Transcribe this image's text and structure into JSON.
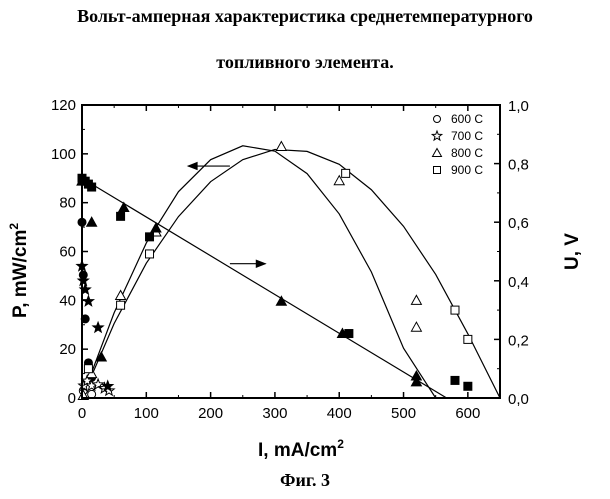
{
  "page": {
    "title_line1": "Вольт-амперная характеристика среднетемпературного",
    "title_line2": "топливного элемента.",
    "caption": "Фиг. 3"
  },
  "chart_data": {
    "type": "scatter",
    "x_axis": {
      "label_main": "I, mA/cm",
      "label_sup": "2",
      "range": [
        0,
        650
      ],
      "ticks": [
        0,
        100,
        200,
        300,
        400,
        500,
        600
      ],
      "tick_labels": [
        "0",
        "100",
        "200",
        "300",
        "400",
        "500",
        "600"
      ]
    },
    "y_left": {
      "label_main": "P, mW/cm",
      "label_sup": "2",
      "range": [
        0,
        120
      ],
      "ticks": [
        0,
        20,
        40,
        60,
        80,
        100,
        120
      ],
      "tick_labels": [
        "0",
        "20",
        "40",
        "60",
        "80",
        "100",
        "120"
      ]
    },
    "y_right": {
      "label": "U, V",
      "range": [
        0,
        1.0
      ],
      "ticks": [
        0,
        0.2,
        0.4,
        0.6,
        0.8,
        1.0
      ],
      "tick_labels": [
        "0,0",
        "0,2",
        "0,4",
        "0,6",
        "0,8",
        "1,0"
      ]
    },
    "legend": {
      "position": "top-right",
      "entries": [
        {
          "label": "600 C",
          "marker": "circle"
        },
        {
          "label": "700 C",
          "marker": "star"
        },
        {
          "label": "800 C",
          "marker": "triangle"
        },
        {
          "label": "900 C",
          "marker": "square"
        }
      ]
    },
    "series": [
      {
        "temperature": "600 C",
        "kind": "power",
        "marker": "circle",
        "filled": false,
        "axis": "left",
        "x": [
          2,
          5,
          8,
          12,
          15
        ],
        "y": [
          3,
          5,
          6,
          4,
          1.5
        ]
      },
      {
        "temperature": "600 C",
        "kind": "voltage",
        "marker": "circle",
        "filled": true,
        "axis": "right",
        "x": [
          0,
          2,
          5,
          10,
          15
        ],
        "y": [
          0.6,
          0.42,
          0.27,
          0.12,
          0.07
        ]
      },
      {
        "temperature": "700 C",
        "kind": "power",
        "marker": "star",
        "filled": false,
        "axis": "left",
        "x": [
          3,
          8,
          15,
          25,
          35,
          42
        ],
        "y": [
          5,
          7,
          5,
          5.5,
          4,
          3
        ]
      },
      {
        "temperature": "700 C",
        "kind": "voltage",
        "marker": "star",
        "filled": true,
        "axis": "right",
        "x": [
          0,
          2,
          5,
          10,
          25,
          40
        ],
        "y": [
          0.45,
          0.4,
          0.37,
          0.33,
          0.24,
          0.04
        ]
      },
      {
        "temperature": "800 C",
        "kind": "power",
        "marker": "triangle",
        "filled": false,
        "axis": "left",
        "x": [
          2,
          15,
          60,
          115,
          310,
          400,
          520,
          520
        ],
        "y": [
          1,
          10,
          42,
          68,
          103,
          89,
          40,
          29
        ]
      },
      {
        "temperature": "800 C",
        "kind": "voltage",
        "marker": "triangle",
        "filled": true,
        "axis": "right",
        "x": [
          0,
          15,
          30,
          65,
          115,
          310,
          405,
          520,
          520
        ],
        "y": [
          0.74,
          0.6,
          0.14,
          0.65,
          0.58,
          0.33,
          0.22,
          0.075,
          0.055
        ]
      },
      {
        "temperature": "900 C",
        "kind": "power",
        "marker": "square",
        "filled": false,
        "axis": "left",
        "x": [
          10,
          60,
          105,
          410,
          580,
          600
        ],
        "y": [
          12,
          38,
          59,
          92,
          36,
          24
        ]
      },
      {
        "temperature": "900 C",
        "kind": "voltage",
        "marker": "square",
        "filled": true,
        "axis": "right",
        "x": [
          0,
          5,
          10,
          15,
          60,
          105,
          415,
          580,
          600
        ],
        "y": [
          0.75,
          0.74,
          0.73,
          0.72,
          0.62,
          0.55,
          0.22,
          0.06,
          0.04
        ]
      }
    ],
    "fit_curves": [
      {
        "kind": "power",
        "axis": "left",
        "description": "parabola",
        "x": [
          0,
          50,
          100,
          150,
          200,
          250,
          300,
          350,
          400,
          450,
          500,
          550,
          600,
          650
        ],
        "y": [
          0,
          30.5,
          55.2,
          74.3,
          88.6,
          97.6,
          101.8,
          101,
          95.7,
          85.3,
          70.3,
          50.6,
          26.3,
          0
        ]
      },
      {
        "kind": "power",
        "axis": "left",
        "description": "parabola",
        "x": [
          0,
          50,
          100,
          150,
          200,
          250,
          300,
          350,
          400,
          450,
          500,
          550,
          565
        ],
        "y": [
          0,
          34.9,
          63.5,
          84.5,
          97.6,
          103.3,
          101.1,
          91.9,
          75.4,
          51.6,
          20.4,
          0,
          0
        ]
      },
      {
        "kind": "voltage",
        "axis": "right",
        "description": "straight line",
        "x": [
          0,
          567
        ],
        "y": [
          0.75,
          0
        ]
      }
    ],
    "annotations": [
      {
        "type": "arrow",
        "direction": "left",
        "from": [
          230,
          95
        ],
        "to": [
          165,
          95
        ],
        "axis": "left"
      },
      {
        "type": "arrow",
        "direction": "right",
        "from": [
          230,
          55
        ],
        "to": [
          285,
          55
        ],
        "axis": "left"
      }
    ]
  }
}
